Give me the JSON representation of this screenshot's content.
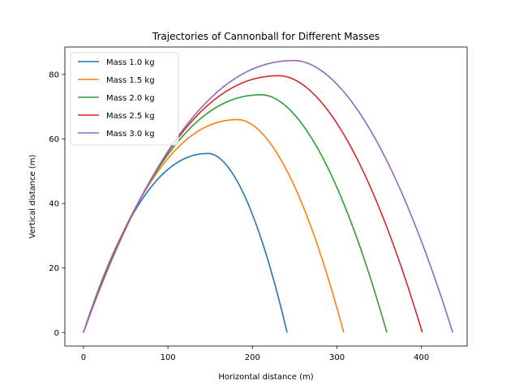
{
  "chart_data": {
    "type": "line",
    "title": "Trajectories of Cannonball for Different Masses",
    "xlabel": "Horizontal distance (m)",
    "ylabel": "Vertical distance (m)",
    "xlim": [
      -22,
      454
    ],
    "ylim": [
      -4.2,
      88.5
    ],
    "xticks": [
      0,
      100,
      200,
      300,
      400
    ],
    "yticks": [
      0,
      20,
      40,
      60,
      80
    ],
    "grid": false,
    "legend_position": "upper-left",
    "series": [
      {
        "name": "Mass 1.0 kg",
        "color": "#1f77b4",
        "range": 241,
        "peak_x": 148,
        "peak_y": 55.5
      },
      {
        "name": "Mass 1.5 kg",
        "color": "#ff7f0e",
        "range": 308,
        "peak_x": 183,
        "peak_y": 66.0
      },
      {
        "name": "Mass 2.0 kg",
        "color": "#2ca02c",
        "range": 359,
        "peak_x": 211,
        "peak_y": 73.7
      },
      {
        "name": "Mass 2.5 kg",
        "color": "#d62728",
        "range": 401,
        "peak_x": 232,
        "peak_y": 79.6
      },
      {
        "name": "Mass 3.0 kg",
        "color": "#9467bd",
        "range": 437,
        "peak_x": 250,
        "peak_y": 84.3
      }
    ]
  }
}
